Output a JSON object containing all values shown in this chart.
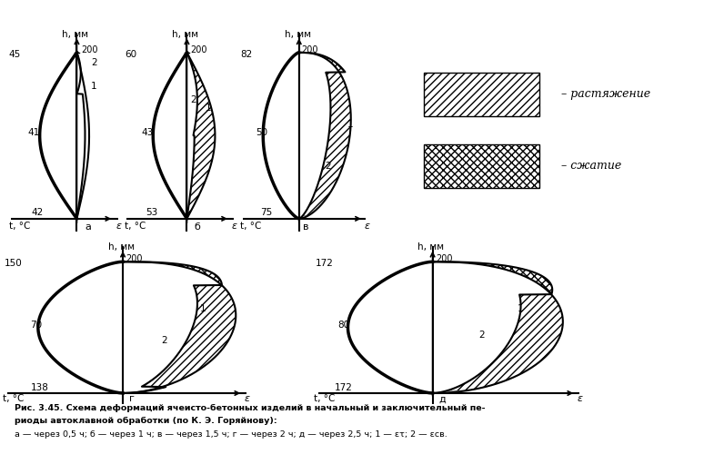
{
  "title_bold": "Рис. 3.45. Схема деформаций ячеисто-бетонных изделий в начальный и заключительный пе-",
  "title_bold2": "риоды автоклавной обработки (по К. Э. Горяйнову):",
  "caption": "а — через 0,5 ч; б — через 1 ч; в — через 1,5 ч; г — через 2 ч; д — через 2,5 ч; 1 — ετ; 2 — εсв.",
  "legend_hatch": "– растяжение",
  "legend_cross": "– сжатие",
  "bg_color": "#ffffff"
}
